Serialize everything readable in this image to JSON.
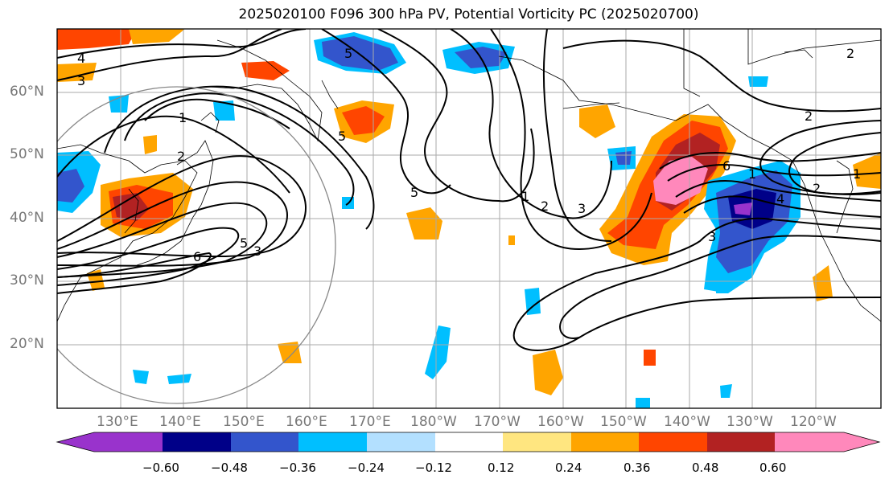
{
  "title": "2025020100 F096 300 hPa PV, Potential Vorticity PC (2025020700)",
  "lat_labels": [
    "60°N",
    "50°N",
    "40°N",
    "30°N",
    "20°N"
  ],
  "lon_labels": [
    "130°E",
    "140°E",
    "150°E",
    "160°E",
    "170°E",
    "180°W",
    "170°W",
    "160°W",
    "150°W",
    "140°W",
    "130°W",
    "120°W"
  ],
  "colorbar": {
    "ticks": [
      "−0.60",
      "−0.48",
      "−0.36",
      "−0.24",
      "−0.12",
      "0.12",
      "0.24",
      "0.36",
      "0.48",
      "0.60"
    ],
    "colors": [
      "#9933cc",
      "#000088",
      "#3355cc",
      "#00bfff",
      "#b3e0ff",
      "#ffffff",
      "#ffe680",
      "#ffa500",
      "#ff4500",
      "#b22222",
      "#ff88bb"
    ]
  },
  "contour_labels": [
    "4",
    "3",
    "1",
    "2",
    "5",
    "5",
    "5",
    "1",
    "2",
    "3",
    "6",
    "5",
    "3",
    "2",
    "6",
    "1",
    "2",
    "1",
    "4",
    "3",
    "2"
  ],
  "colors": {
    "contour": "#000000",
    "grid": "#aaaaaa",
    "coast": "#000000",
    "ring": "#888888"
  }
}
